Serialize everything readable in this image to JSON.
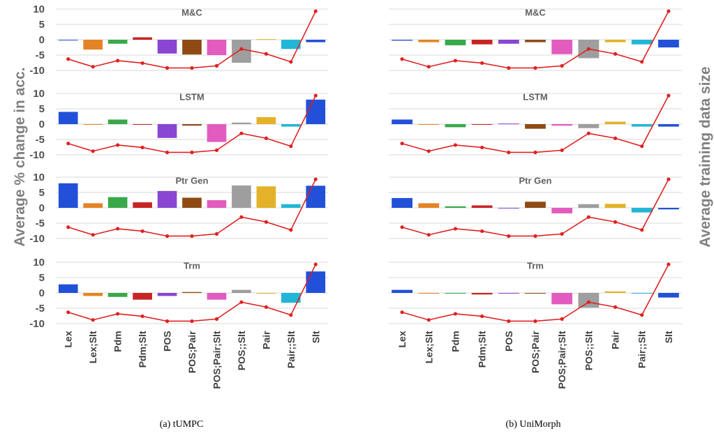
{
  "figure": {
    "y_label_left": "Average % change in acc.",
    "y_label_right": "Average  training data size",
    "captions": [
      "(a) tUMPC",
      "(b) UniMorph"
    ]
  },
  "chart_data": {
    "type": "bar",
    "categories": [
      "Lex",
      "Lex;Slt",
      "Pdm",
      "Pdm;Slt",
      "POS",
      "POS;Pair",
      "POS;Pair;Slt",
      "POS;;Slt",
      "Pair",
      "Pair;;Slt",
      "Slt"
    ],
    "colors": [
      "#2250d8",
      "#e58424",
      "#38a84a",
      "#c82424",
      "#8846d2",
      "#8f4a14",
      "#e25cbf",
      "#9e9e9e",
      "#e3b228",
      "#22b6d6",
      "#2250d8"
    ],
    "line_color": "#e02020",
    "yticks": [
      -10,
      -5,
      0,
      5,
      10
    ],
    "ylim": [
      -11,
      11
    ],
    "training_size_line": [
      -6.3,
      -8.8,
      -6.8,
      -7.6,
      -9.2,
      -9.2,
      -8.5,
      -3,
      -4.6,
      -7.2,
      9.3
    ],
    "panels": [
      {
        "caption": "(a) tUMPC",
        "subplots": [
          {
            "title": "M&C",
            "values": [
              0,
              -3.2,
              -1.3,
              0.8,
              -4.5,
              -4.8,
              -5.0,
              -7.5,
              0.2,
              -3.0,
              -0.8
            ]
          },
          {
            "title": "LSTM",
            "values": [
              4.0,
              0,
              1.5,
              0,
              -4.5,
              -0.5,
              -5.8,
              0.5,
              2.3,
              -0.8,
              8.0
            ]
          },
          {
            "title": "Ptr Gen",
            "values": [
              8.0,
              1.5,
              3.5,
              1.8,
              5.5,
              3.3,
              2.5,
              7.3,
              7.0,
              1.2,
              7.2
            ]
          },
          {
            "title": "Trm",
            "values": [
              2.8,
              -1.0,
              -1.3,
              -2.2,
              -1.0,
              0.3,
              -2.2,
              1.0,
              0,
              -3.2,
              7.0
            ]
          }
        ]
      },
      {
        "caption": "(b) UniMorph",
        "subplots": [
          {
            "title": "M&C",
            "values": [
              -0.3,
              -0.8,
              -1.8,
              -1.5,
              -1.3,
              -0.8,
              -4.7,
              -6.0,
              -0.8,
              -1.5,
              -2.5
            ]
          },
          {
            "title": "LSTM",
            "values": [
              1.5,
              0,
              -1.0,
              0,
              0.2,
              -1.5,
              -0.5,
              -1.3,
              0.8,
              -0.8,
              -0.8
            ]
          },
          {
            "title": "Ptr Gen",
            "values": [
              3.2,
              1.5,
              0.5,
              0.8,
              0,
              2.0,
              -1.8,
              1.2,
              1.3,
              -1.5,
              -0.5
            ]
          },
          {
            "title": "Trm",
            "values": [
              1.0,
              0,
              -0.2,
              -0.5,
              0,
              -0.2,
              -3.7,
              -4.8,
              0.5,
              0,
              -1.5
            ]
          }
        ]
      }
    ]
  }
}
